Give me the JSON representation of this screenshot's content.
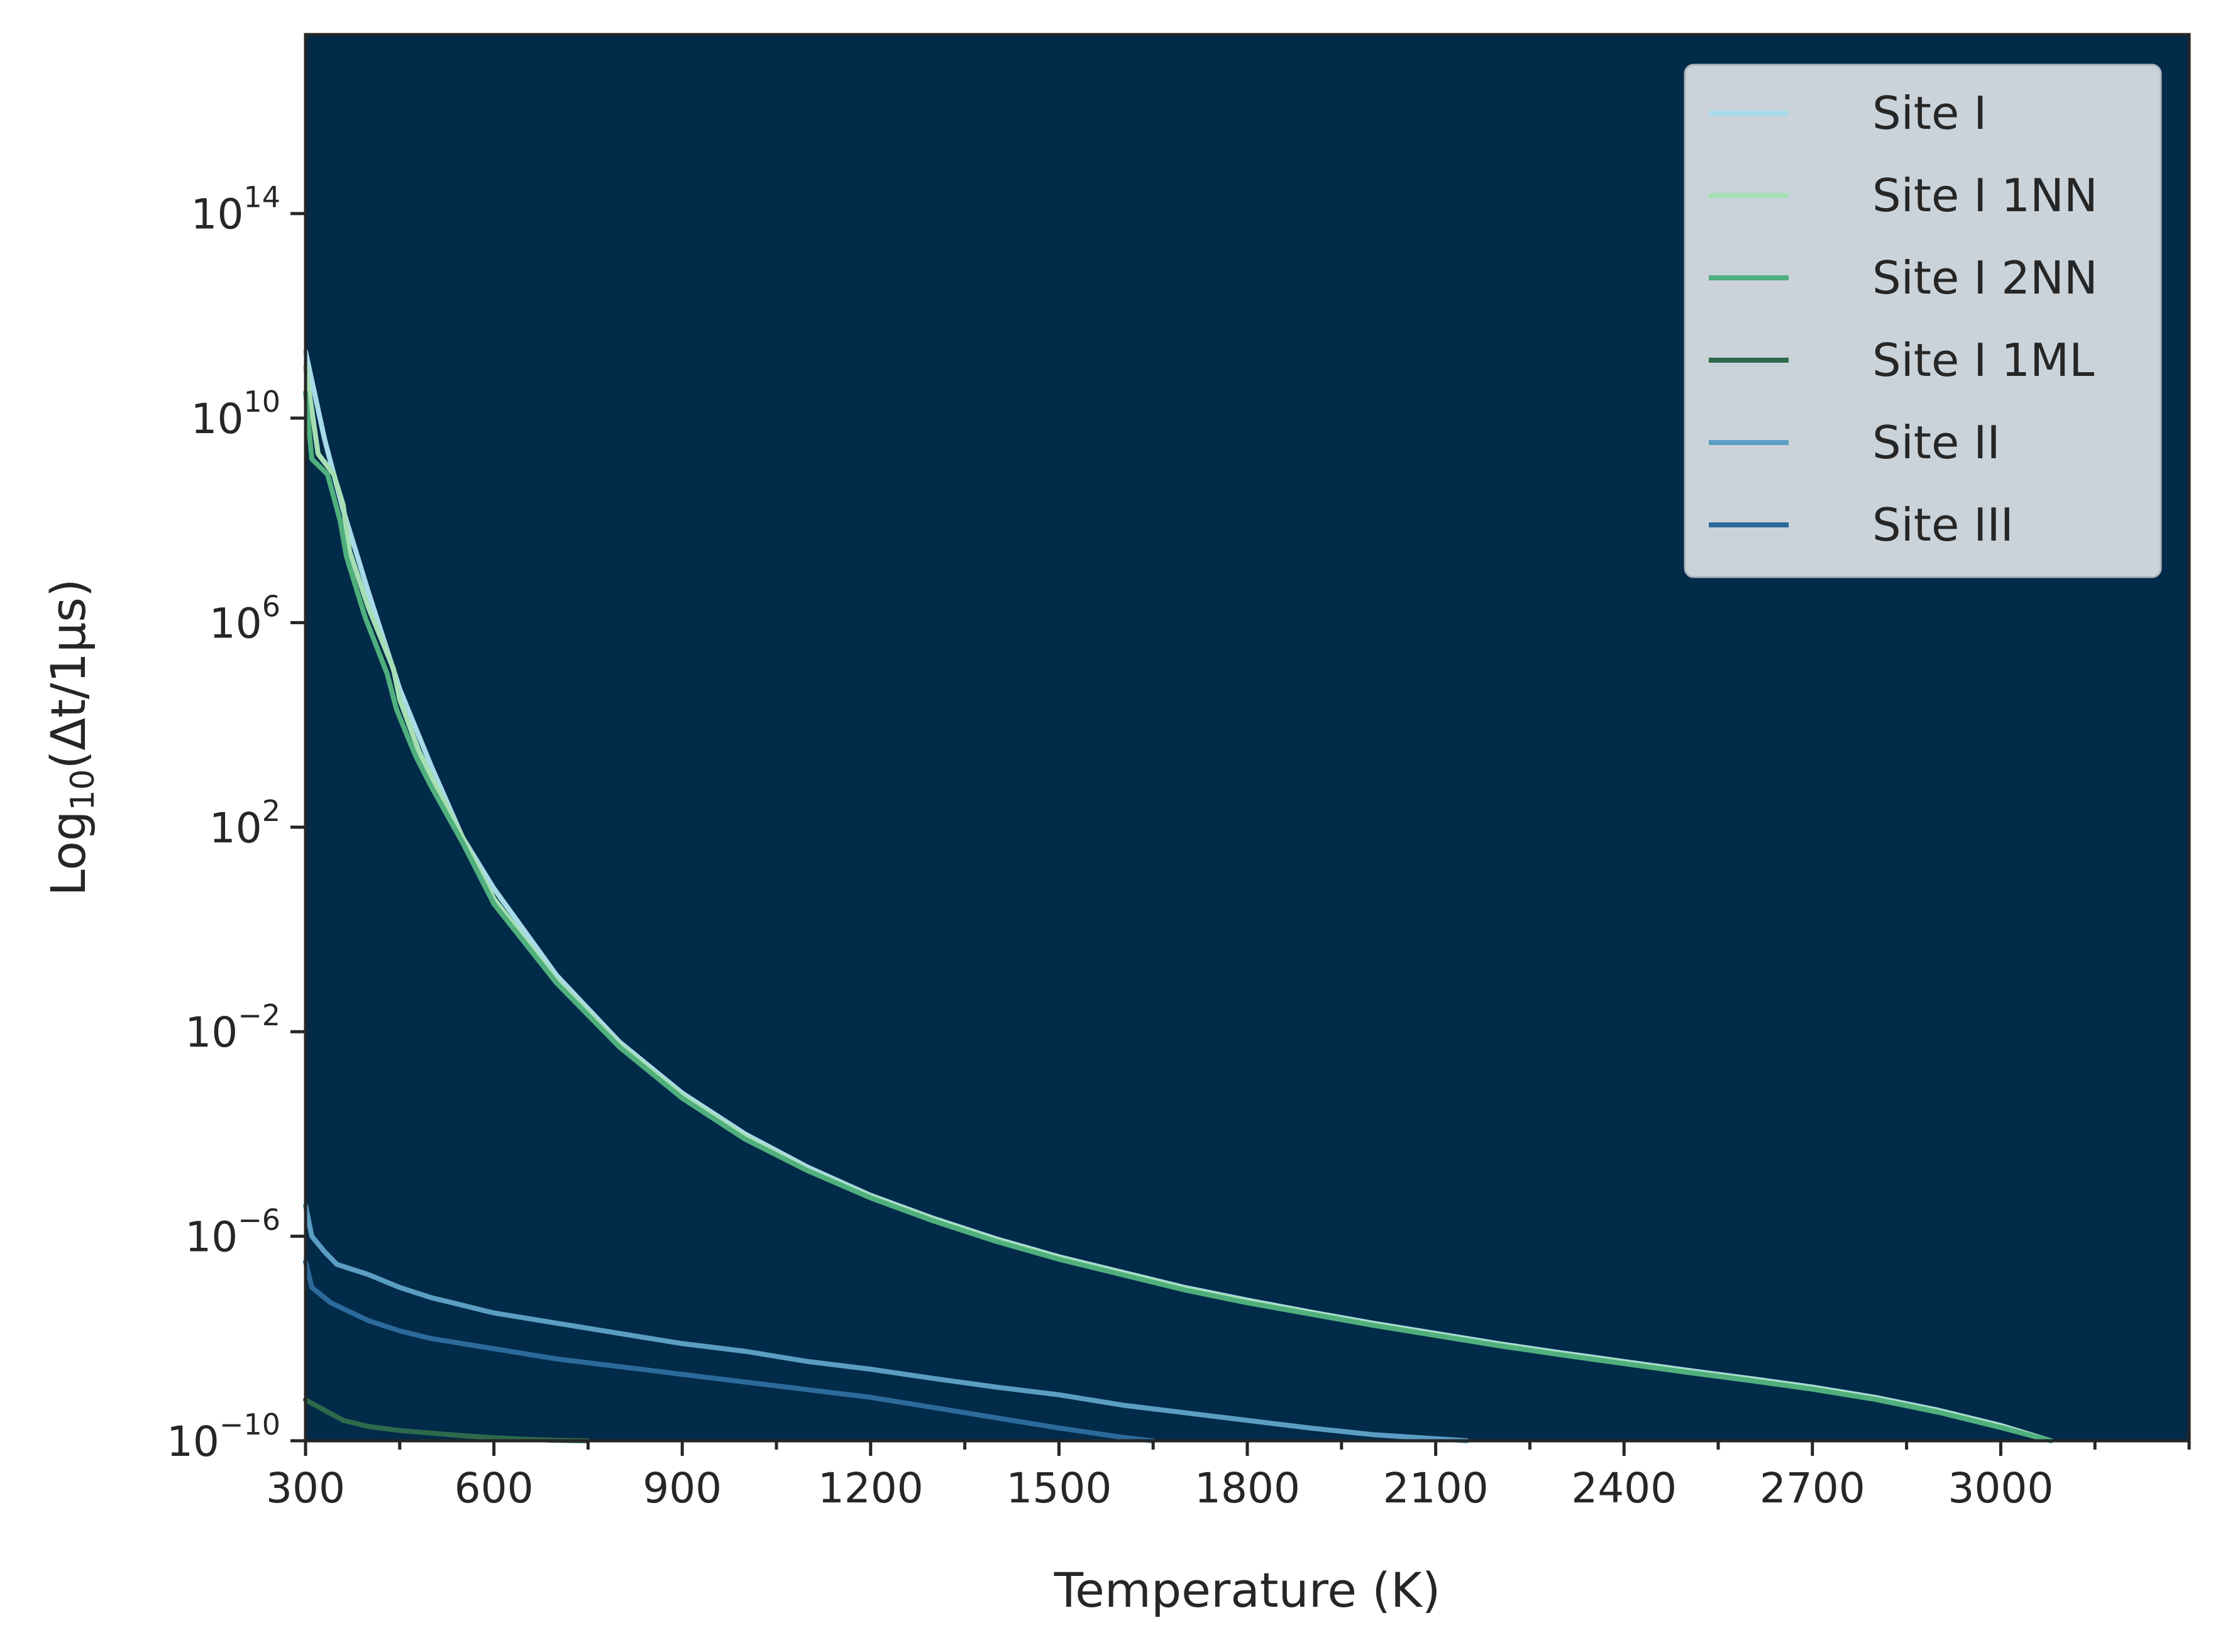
{
  "colors": {
    "plot_background": "#022a49",
    "axis": "#262626",
    "legend_background": "#cbd3da",
    "legend_border": "#aab4bd"
  },
  "chart_data": {
    "type": "line",
    "title": "",
    "xlabel": "Temperature (K)",
    "ylabel": {
      "prefix": "Log",
      "subscript": "10",
      "suffix": "(Δt/1μs)"
    },
    "yscale": "log",
    "xlim": [
      300,
      3300
    ],
    "ylim_exponent": [
      -10,
      17.5
    ],
    "x_ticks": [
      300,
      600,
      900,
      1200,
      1500,
      1800,
      2100,
      2400,
      2700,
      3000
    ],
    "x_minor_step": 150,
    "y_ticks": [
      {
        "base": "10",
        "exp": "−10",
        "value": -10
      },
      {
        "base": "10",
        "exp": "−6",
        "value": -6
      },
      {
        "base": "10",
        "exp": "−2",
        "value": -2
      },
      {
        "base": "10",
        "exp": "2",
        "value": 2
      },
      {
        "base": "10",
        "exp": "6",
        "value": 6
      },
      {
        "base": "10",
        "exp": "10",
        "value": 10
      },
      {
        "base": "10",
        "exp": "14",
        "value": 14
      }
    ],
    "grid": false,
    "legend_position": "top-right",
    "series": [
      {
        "name": "Site I",
        "color": "#a8dbe8",
        "log10_y": [
          [
            300,
            11.3
          ],
          [
            330,
            9.6
          ],
          [
            360,
            8.2
          ],
          [
            400,
            6.6
          ],
          [
            450,
            4.7
          ],
          [
            500,
            3.2
          ],
          [
            550,
            1.8
          ],
          [
            600,
            0.8
          ],
          [
            700,
            -0.9
          ],
          [
            800,
            -2.2
          ],
          [
            900,
            -3.2
          ],
          [
            1000,
            -4.0
          ],
          [
            1100,
            -4.65
          ],
          [
            1200,
            -5.2
          ],
          [
            1300,
            -5.65
          ],
          [
            1400,
            -6.05
          ],
          [
            1500,
            -6.4
          ],
          [
            1600,
            -6.7
          ],
          [
            1700,
            -7.0
          ],
          [
            1800,
            -7.25
          ],
          [
            1900,
            -7.48
          ],
          [
            2000,
            -7.7
          ],
          [
            2100,
            -7.9
          ],
          [
            2200,
            -8.1
          ],
          [
            2300,
            -8.28
          ],
          [
            2400,
            -8.45
          ],
          [
            2500,
            -8.62
          ],
          [
            2600,
            -8.78
          ],
          [
            2700,
            -8.95
          ],
          [
            2800,
            -9.15
          ],
          [
            2900,
            -9.4
          ],
          [
            3000,
            -9.7
          ],
          [
            3080,
            -10.0
          ]
        ]
      },
      {
        "name": "Site I 1NN",
        "color": "#a6dfb3",
        "log10_y": [
          [
            300,
            11.0
          ],
          [
            320,
            9.3
          ],
          [
            345,
            8.9
          ],
          [
            360,
            8.3
          ],
          [
            370,
            7.4
          ],
          [
            400,
            6.3
          ],
          [
            440,
            5.1
          ],
          [
            450,
            4.5
          ],
          [
            480,
            3.5
          ],
          [
            500,
            3.0
          ],
          [
            550,
            1.8
          ],
          [
            600,
            0.6
          ],
          [
            700,
            -1.0
          ],
          [
            800,
            -2.25
          ],
          [
            900,
            -3.25
          ],
          [
            1000,
            -4.05
          ],
          [
            1100,
            -4.7
          ],
          [
            1200,
            -5.22
          ],
          [
            1300,
            -5.67
          ],
          [
            1400,
            -6.07
          ],
          [
            1500,
            -6.42
          ],
          [
            1600,
            -6.72
          ],
          [
            1700,
            -7.02
          ],
          [
            1800,
            -7.27
          ],
          [
            1900,
            -7.5
          ],
          [
            2000,
            -7.72
          ],
          [
            2100,
            -7.92
          ],
          [
            2200,
            -8.12
          ],
          [
            2300,
            -8.3
          ],
          [
            2400,
            -8.47
          ],
          [
            2500,
            -8.64
          ],
          [
            2600,
            -8.8
          ],
          [
            2700,
            -8.97
          ],
          [
            2800,
            -9.17
          ],
          [
            2900,
            -9.42
          ],
          [
            3000,
            -9.72
          ],
          [
            3080,
            -10.0
          ]
        ]
      },
      {
        "name": "Site I 2NN",
        "color": "#4faf7d",
        "log10_y": [
          [
            300,
            10.5
          ],
          [
            310,
            9.2
          ],
          [
            335,
            8.9
          ],
          [
            355,
            8.0
          ],
          [
            365,
            7.3
          ],
          [
            395,
            6.1
          ],
          [
            430,
            5.0
          ],
          [
            445,
            4.3
          ],
          [
            475,
            3.4
          ],
          [
            500,
            2.8
          ],
          [
            550,
            1.7
          ],
          [
            600,
            0.5
          ],
          [
            700,
            -1.05
          ],
          [
            800,
            -2.3
          ],
          [
            900,
            -3.3
          ],
          [
            1000,
            -4.1
          ],
          [
            1100,
            -4.72
          ],
          [
            1200,
            -5.25
          ],
          [
            1300,
            -5.7
          ],
          [
            1400,
            -6.1
          ],
          [
            1500,
            -6.45
          ],
          [
            1600,
            -6.75
          ],
          [
            1700,
            -7.05
          ],
          [
            1800,
            -7.3
          ],
          [
            1900,
            -7.52
          ],
          [
            2000,
            -7.74
          ],
          [
            2100,
            -7.94
          ],
          [
            2200,
            -8.14
          ],
          [
            2300,
            -8.32
          ],
          [
            2400,
            -8.49
          ],
          [
            2500,
            -8.66
          ],
          [
            2600,
            -8.82
          ],
          [
            2700,
            -8.99
          ],
          [
            2800,
            -9.19
          ],
          [
            2900,
            -9.44
          ],
          [
            3000,
            -9.74
          ],
          [
            3080,
            -10.0
          ]
        ]
      },
      {
        "name": "Site I 1ML",
        "color": "#2d6a4c",
        "log10_y": [
          [
            300,
            -9.2
          ],
          [
            330,
            -9.4
          ],
          [
            360,
            -9.6
          ],
          [
            400,
            -9.72
          ],
          [
            450,
            -9.8
          ],
          [
            500,
            -9.85
          ],
          [
            550,
            -9.9
          ],
          [
            600,
            -9.94
          ],
          [
            650,
            -9.97
          ],
          [
            700,
            -9.99
          ],
          [
            750,
            -10.0
          ]
        ]
      },
      {
        "name": "Site II",
        "color": "#5b9ec4",
        "log10_y": [
          [
            300,
            -5.4
          ],
          [
            310,
            -6.0
          ],
          [
            330,
            -6.3
          ],
          [
            350,
            -6.55
          ],
          [
            400,
            -6.75
          ],
          [
            450,
            -7.0
          ],
          [
            500,
            -7.2
          ],
          [
            550,
            -7.35
          ],
          [
            600,
            -7.5
          ],
          [
            700,
            -7.7
          ],
          [
            800,
            -7.9
          ],
          [
            900,
            -8.1
          ],
          [
            1000,
            -8.25
          ],
          [
            1100,
            -8.45
          ],
          [
            1200,
            -8.6
          ],
          [
            1300,
            -8.78
          ],
          [
            1400,
            -8.95
          ],
          [
            1500,
            -9.1
          ],
          [
            1600,
            -9.3
          ],
          [
            1700,
            -9.45
          ],
          [
            1800,
            -9.6
          ],
          [
            1900,
            -9.75
          ],
          [
            2000,
            -9.88
          ],
          [
            2100,
            -9.96
          ],
          [
            2150,
            -10.0
          ]
        ]
      },
      {
        "name": "Site III",
        "color": "#2b6a9a",
        "log10_y": [
          [
            300,
            -6.5
          ],
          [
            310,
            -7.0
          ],
          [
            340,
            -7.3
          ],
          [
            400,
            -7.65
          ],
          [
            450,
            -7.85
          ],
          [
            500,
            -8.0
          ],
          [
            550,
            -8.1
          ],
          [
            600,
            -8.2
          ],
          [
            700,
            -8.4
          ],
          [
            800,
            -8.55
          ],
          [
            900,
            -8.7
          ],
          [
            1000,
            -8.85
          ],
          [
            1100,
            -9.0
          ],
          [
            1200,
            -9.15
          ],
          [
            1300,
            -9.35
          ],
          [
            1400,
            -9.55
          ],
          [
            1500,
            -9.75
          ],
          [
            1600,
            -9.93
          ],
          [
            1650,
            -10.0
          ]
        ]
      }
    ]
  }
}
